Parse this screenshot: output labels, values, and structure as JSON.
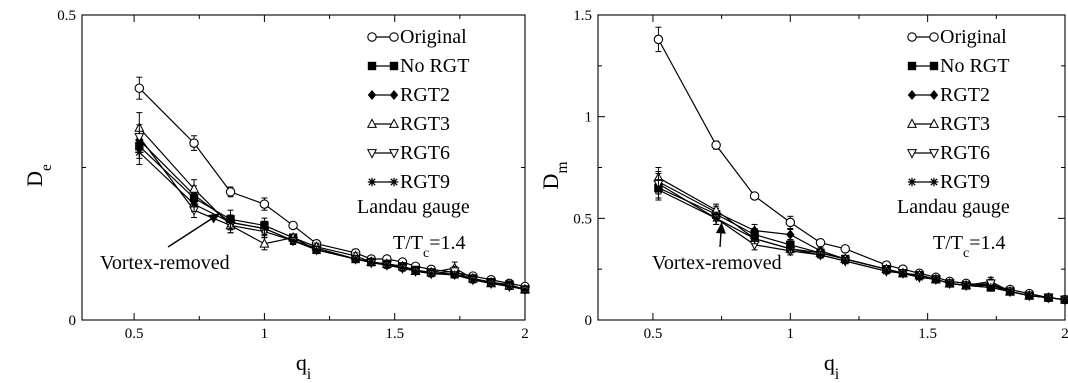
{
  "chart_data": [
    {
      "type": "line",
      "panel": "left",
      "xlabel": "q",
      "xlabel_sub": "i",
      "ylabel": "D",
      "ylabel_sub": "e",
      "xlim": [
        0.3,
        2.0
      ],
      "ylim": [
        0,
        0.5
      ],
      "xticks": [
        0.5,
        1,
        1.5,
        2
      ],
      "xtick_labels": [
        "0.5",
        "1",
        "1.5",
        "2"
      ],
      "yticks": [
        0,
        0.5
      ],
      "ytick_labels": [
        "0",
        "0.5"
      ],
      "legend_position": "top-right",
      "series": [
        {
          "name": "Original",
          "marker": "circle-open",
          "x": [
            0.52,
            0.73,
            0.87,
            1.0,
            1.11,
            1.2,
            1.35,
            1.41,
            1.47,
            1.53,
            1.58,
            1.64,
            1.73,
            1.8,
            1.87,
            1.94,
            2.0
          ],
          "y": [
            0.38,
            0.29,
            0.21,
            0.19,
            0.155,
            0.125,
            0.11,
            0.1,
            0.1,
            0.095,
            0.088,
            0.083,
            0.078,
            0.072,
            0.066,
            0.06,
            0.055
          ],
          "err": [
            0.018,
            0.012,
            0.008,
            0.01,
            0.005,
            0.005,
            0.006,
            0.005,
            0.005,
            0.005,
            0.004,
            0.004,
            0.004,
            0.004,
            0.004,
            0.004,
            0.004
          ]
        },
        {
          "name": "No RGT",
          "marker": "square-filled",
          "x": [
            0.52,
            0.73,
            0.87,
            1.0,
            1.11,
            1.2,
            1.35,
            1.41,
            1.47,
            1.53,
            1.58,
            1.64,
            1.73,
            1.8,
            1.87,
            1.94,
            2.0
          ],
          "y": [
            0.285,
            0.2,
            0.165,
            0.155,
            0.135,
            0.115,
            0.1,
            0.095,
            0.092,
            0.088,
            0.082,
            0.078,
            0.075,
            0.068,
            0.062,
            0.058,
            0.05
          ],
          "err": [
            0.02,
            0.015,
            0.015,
            0.012,
            0.006,
            0.006,
            0.005,
            0.005,
            0.005,
            0.005,
            0.005,
            0.005,
            0.005,
            0.005,
            0.005,
            0.005,
            0.005
          ]
        },
        {
          "name": "RGT2",
          "marker": "diamond-filled",
          "x": [
            0.52,
            0.73,
            0.87,
            1.0,
            1.11,
            1.2,
            1.35,
            1.41,
            1.47,
            1.53,
            1.58,
            1.64,
            1.73,
            1.8,
            1.87,
            1.94,
            2.0
          ],
          "y": [
            0.295,
            0.205,
            0.16,
            0.15,
            0.13,
            0.118,
            0.1,
            0.096,
            0.09,
            0.086,
            0.08,
            0.077,
            0.074,
            0.068,
            0.062,
            0.056,
            0.05
          ],
          "err": [
            0.02,
            0.015,
            0.012,
            0.012,
            0.006,
            0.006,
            0.005,
            0.005,
            0.005,
            0.005,
            0.005,
            0.005,
            0.005,
            0.005,
            0.005,
            0.005,
            0.005
          ]
        },
        {
          "name": "RGT3",
          "marker": "triangle-up-open",
          "x": [
            0.52,
            0.73,
            0.87,
            1.0,
            1.11,
            1.2,
            1.35,
            1.41,
            1.47,
            1.53,
            1.58,
            1.64,
            1.73,
            1.8,
            1.87,
            1.94,
            2.0
          ],
          "y": [
            0.315,
            0.215,
            0.155,
            0.125,
            0.135,
            0.12,
            0.105,
            0.095,
            0.092,
            0.088,
            0.08,
            0.078,
            0.085,
            0.068,
            0.06,
            0.056,
            0.05
          ],
          "err": [
            0.025,
            0.015,
            0.012,
            0.01,
            0.006,
            0.006,
            0.005,
            0.005,
            0.005,
            0.005,
            0.005,
            0.005,
            0.01,
            0.005,
            0.005,
            0.005,
            0.005
          ]
        },
        {
          "name": "RGT6",
          "marker": "triangle-down-open",
          "x": [
            0.52,
            0.73,
            0.87,
            1.0,
            1.11,
            1.2,
            1.35,
            1.41,
            1.47,
            1.53,
            1.58,
            1.64,
            1.73,
            1.8,
            1.87,
            1.94,
            2.0
          ],
          "y": [
            0.3,
            0.18,
            0.155,
            0.145,
            0.13,
            0.115,
            0.1,
            0.094,
            0.09,
            0.085,
            0.08,
            0.076,
            0.08,
            0.066,
            0.06,
            0.055,
            0.05
          ],
          "err": [
            0.02,
            0.012,
            0.012,
            0.01,
            0.006,
            0.006,
            0.005,
            0.005,
            0.005,
            0.005,
            0.005,
            0.005,
            0.008,
            0.005,
            0.005,
            0.005,
            0.005
          ]
        },
        {
          "name": "RGT9",
          "marker": "asterisk",
          "x": [
            0.52,
            0.73,
            0.87,
            1.0,
            1.11,
            1.2,
            1.35,
            1.41,
            1.47,
            1.53,
            1.58,
            1.64,
            1.73,
            1.8,
            1.87,
            1.94,
            2.0
          ],
          "y": [
            0.275,
            0.19,
            0.16,
            0.15,
            0.13,
            0.115,
            0.1,
            0.095,
            0.09,
            0.086,
            0.08,
            0.076,
            0.074,
            0.066,
            0.06,
            0.055,
            0.05
          ],
          "err": [
            0.02,
            0.012,
            0.012,
            0.01,
            0.006,
            0.006,
            0.005,
            0.005,
            0.005,
            0.005,
            0.005,
            0.005,
            0.005,
            0.005,
            0.005,
            0.005,
            0.005
          ]
        }
      ],
      "annotations": [
        {
          "text": "Landau gauge"
        },
        {
          "text": "T/T",
          "sub": "c",
          "rest": "=1.4"
        },
        {
          "text": "Vortex-removed",
          "arrow_to_x": 0.83,
          "arrow_to_y": 0.175
        }
      ]
    },
    {
      "type": "line",
      "panel": "right",
      "xlabel": "q",
      "xlabel_sub": "i",
      "ylabel": "D",
      "ylabel_sub": "m",
      "xlim": [
        0.3,
        2.0
      ],
      "ylim": [
        0,
        1.5
      ],
      "xticks": [
        0.5,
        1,
        1.5,
        2
      ],
      "xtick_labels": [
        "0.5",
        "1",
        "1.5",
        "2"
      ],
      "yticks": [
        0,
        0.5,
        1,
        1.5
      ],
      "ytick_labels": [
        "0",
        "0.5",
        "1",
        "1.5"
      ],
      "legend_position": "top-right",
      "series": [
        {
          "name": "Original",
          "marker": "circle-open",
          "x": [
            0.52,
            0.73,
            0.87,
            1.0,
            1.11,
            1.2,
            1.35,
            1.41,
            1.47,
            1.53,
            1.58,
            1.64,
            1.73,
            1.8,
            1.87,
            1.94,
            2.0
          ],
          "y": [
            1.38,
            0.86,
            0.61,
            0.48,
            0.38,
            0.35,
            0.27,
            0.25,
            0.23,
            0.21,
            0.19,
            0.18,
            0.17,
            0.15,
            0.13,
            0.11,
            0.1
          ],
          "err": [
            0.06,
            0.02,
            0.015,
            0.03,
            0.01,
            0.01,
            0.01,
            0.01,
            0.01,
            0.01,
            0.01,
            0.01,
            0.01,
            0.01,
            0.01,
            0.01,
            0.01
          ]
        },
        {
          "name": "No RGT",
          "marker": "square-filled",
          "x": [
            0.52,
            0.73,
            0.87,
            1.0,
            1.11,
            1.2,
            1.35,
            1.41,
            1.47,
            1.53,
            1.58,
            1.64,
            1.73,
            1.8,
            1.87,
            1.94,
            2.0
          ],
          "y": [
            0.65,
            0.52,
            0.42,
            0.37,
            0.33,
            0.3,
            0.25,
            0.23,
            0.22,
            0.2,
            0.18,
            0.17,
            0.16,
            0.14,
            0.12,
            0.11,
            0.1
          ],
          "err": [
            0.05,
            0.03,
            0.03,
            0.025,
            0.015,
            0.01,
            0.01,
            0.01,
            0.01,
            0.01,
            0.01,
            0.01,
            0.01,
            0.01,
            0.01,
            0.01,
            0.01
          ]
        },
        {
          "name": "RGT2",
          "marker": "diamond-filled",
          "x": [
            0.52,
            0.73,
            0.87,
            1.0,
            1.11,
            1.2,
            1.35,
            1.41,
            1.47,
            1.53,
            1.58,
            1.64,
            1.73,
            1.8,
            1.87,
            1.94,
            2.0
          ],
          "y": [
            0.68,
            0.53,
            0.44,
            0.42,
            0.34,
            0.3,
            0.25,
            0.23,
            0.22,
            0.2,
            0.18,
            0.17,
            0.17,
            0.14,
            0.12,
            0.11,
            0.1
          ],
          "err": [
            0.05,
            0.03,
            0.03,
            0.025,
            0.015,
            0.01,
            0.01,
            0.01,
            0.01,
            0.01,
            0.01,
            0.01,
            0.01,
            0.01,
            0.01,
            0.01,
            0.01
          ]
        },
        {
          "name": "RGT3",
          "marker": "triangle-up-open",
          "x": [
            0.52,
            0.73,
            0.87,
            1.0,
            1.11,
            1.2,
            1.35,
            1.41,
            1.47,
            1.53,
            1.58,
            1.64,
            1.73,
            1.8,
            1.87,
            1.94,
            2.0
          ],
          "y": [
            0.7,
            0.54,
            0.4,
            0.35,
            0.33,
            0.3,
            0.25,
            0.23,
            0.22,
            0.2,
            0.18,
            0.17,
            0.19,
            0.14,
            0.12,
            0.11,
            0.1
          ],
          "err": [
            0.05,
            0.03,
            0.03,
            0.02,
            0.015,
            0.01,
            0.01,
            0.01,
            0.01,
            0.01,
            0.01,
            0.01,
            0.02,
            0.01,
            0.01,
            0.01,
            0.01
          ]
        },
        {
          "name": "RGT6",
          "marker": "triangle-down-open",
          "x": [
            0.52,
            0.73,
            0.87,
            1.0,
            1.11,
            1.2,
            1.35,
            1.41,
            1.47,
            1.53,
            1.58,
            1.64,
            1.73,
            1.8,
            1.87,
            1.94,
            2.0
          ],
          "y": [
            0.67,
            0.5,
            0.37,
            0.34,
            0.32,
            0.29,
            0.24,
            0.23,
            0.21,
            0.2,
            0.18,
            0.17,
            0.18,
            0.14,
            0.12,
            0.11,
            0.1
          ],
          "err": [
            0.05,
            0.03,
            0.025,
            0.02,
            0.015,
            0.01,
            0.01,
            0.01,
            0.01,
            0.01,
            0.01,
            0.01,
            0.02,
            0.01,
            0.01,
            0.01,
            0.01
          ]
        },
        {
          "name": "RGT9",
          "marker": "asterisk",
          "x": [
            0.52,
            0.73,
            0.87,
            1.0,
            1.11,
            1.2,
            1.35,
            1.41,
            1.47,
            1.53,
            1.58,
            1.64,
            1.73,
            1.8,
            1.87,
            1.94,
            2.0
          ],
          "y": [
            0.64,
            0.5,
            0.4,
            0.35,
            0.32,
            0.29,
            0.24,
            0.23,
            0.21,
            0.2,
            0.18,
            0.17,
            0.16,
            0.14,
            0.12,
            0.11,
            0.1
          ],
          "err": [
            0.05,
            0.03,
            0.025,
            0.02,
            0.015,
            0.01,
            0.01,
            0.01,
            0.01,
            0.01,
            0.01,
            0.01,
            0.01,
            0.01,
            0.01,
            0.01,
            0.01
          ]
        }
      ],
      "annotations": [
        {
          "text": "Landau gauge"
        },
        {
          "text": "T/T",
          "sub": "c",
          "rest": "=1.4"
        },
        {
          "text": "Vortex-removed",
          "arrow_to_x": 0.75,
          "arrow_to_y": 0.48
        }
      ]
    }
  ]
}
